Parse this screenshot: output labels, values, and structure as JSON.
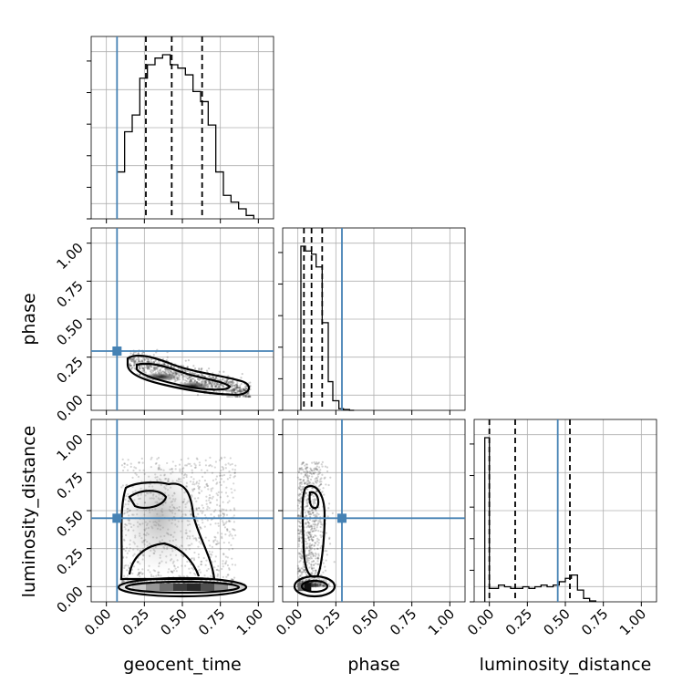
{
  "chart_data": {
    "type": "corner",
    "parameters": [
      "geocent_time",
      "phase",
      "luminosity_distance"
    ],
    "axis_range": [
      -0.1,
      1.1
    ],
    "tick_labels": [
      "0.00",
      "0.25",
      "0.50",
      "0.75",
      "1.00"
    ],
    "tick_values": [
      0,
      0.25,
      0.5,
      0.75,
      1.0
    ],
    "grid": true,
    "colors": {
      "truth": "#4682b4",
      "hist": "#000000",
      "quantile": "#000000",
      "grid": "#b0b0b0"
    },
    "truths": {
      "geocent_time": 0.07,
      "phase": 0.29,
      "luminosity_distance": 0.45
    },
    "quantiles": {
      "geocent_time": [
        0.26,
        0.43,
        0.63
      ],
      "phase": [
        0.04,
        0.09,
        0.16
      ],
      "luminosity_distance": [
        0.0,
        0.17,
        0.53
      ]
    },
    "histograms": {
      "geocent_time": {
        "bin_edges": [
          0.07,
          0.12,
          0.17,
          0.22,
          0.27,
          0.32,
          0.37,
          0.42,
          0.47,
          0.52,
          0.57,
          0.62,
          0.67,
          0.72,
          0.77,
          0.82,
          0.87,
          0.92,
          0.97
        ],
        "counts": [
          0.14,
          0.26,
          0.31,
          0.42,
          0.46,
          0.48,
          0.49,
          0.46,
          0.45,
          0.43,
          0.38,
          0.35,
          0.28,
          0.14,
          0.07,
          0.05,
          0.03,
          0.01
        ]
      },
      "phase": {
        "bin_edges": [
          0.02,
          0.05,
          0.09,
          0.12,
          0.16,
          0.2,
          0.23,
          0.27,
          0.3,
          0.34,
          0.37
        ],
        "counts": [
          1.03,
          1.0,
          0.98,
          0.9,
          0.55,
          0.18,
          0.06,
          0.01,
          0.005,
          0.0
        ]
      },
      "luminosity_distance": {
        "bin_edges": [
          -0.03,
          0.0,
          0.03,
          0.06,
          0.1,
          0.14,
          0.18,
          0.22,
          0.26,
          0.3,
          0.34,
          0.38,
          0.42,
          0.46,
          0.5,
          0.54,
          0.58,
          0.62,
          0.66,
          0.7
        ],
        "counts": [
          0.98,
          0.08,
          0.08,
          0.1,
          0.09,
          0.08,
          0.08,
          0.09,
          0.08,
          0.09,
          0.1,
          0.09,
          0.1,
          0.12,
          0.14,
          0.16,
          0.07,
          0.02,
          0.005
        ]
      }
    },
    "pairs": [
      {
        "x": "geocent_time",
        "y": "phase",
        "mode": [
          0.53,
          0.07
        ],
        "note": "negative correlation, elongated"
      },
      {
        "x": "geocent_time",
        "y": "luminosity_distance",
        "mode": [
          0.45,
          0.0
        ],
        "note": "dense band at 0, spread above"
      },
      {
        "x": "phase",
        "y": "luminosity_distance",
        "mode": [
          0.08,
          0.0
        ],
        "note": "narrow column near phase 0.1"
      }
    ]
  }
}
